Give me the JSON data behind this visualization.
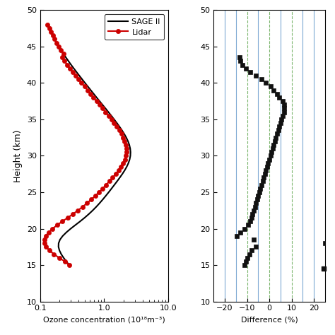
{
  "sage_heights": [
    48,
    47.5,
    47,
    46.5,
    46,
    45.5,
    45,
    44.5,
    44,
    43.5,
    43,
    42.5,
    42,
    41.5,
    41,
    40.5,
    40,
    39.5,
    39,
    38.5,
    38,
    37.5,
    37,
    36.5,
    36,
    35.5,
    35,
    34.5,
    34,
    33.5,
    33,
    32.5,
    32,
    31.5,
    31,
    30.5,
    30,
    29.5,
    29,
    28.5,
    28,
    27.5,
    27,
    26.5,
    26,
    25.5,
    25,
    24.5,
    24,
    23.5,
    23,
    22.5,
    22,
    21.5,
    21,
    20.5,
    20,
    19.5,
    19,
    18.5,
    18,
    17.5,
    17,
    16.5,
    16,
    15.5,
    15
  ],
  "sage_conc": [
    0.13,
    0.138,
    0.147,
    0.157,
    0.168,
    0.181,
    0.196,
    0.212,
    0.231,
    0.252,
    0.276,
    0.303,
    0.334,
    0.369,
    0.408,
    0.452,
    0.501,
    0.556,
    0.617,
    0.685,
    0.761,
    0.846,
    0.941,
    1.047,
    1.163,
    1.29,
    1.428,
    1.576,
    1.732,
    1.894,
    2.057,
    2.213,
    2.354,
    2.469,
    2.547,
    2.58,
    2.564,
    2.499,
    2.392,
    2.251,
    2.09,
    1.92,
    1.751,
    1.59,
    1.44,
    1.302,
    1.176,
    1.059,
    0.95,
    0.848,
    0.752,
    0.661,
    0.575,
    0.495,
    0.421,
    0.355,
    0.3,
    0.257,
    0.225,
    0.204,
    0.194,
    0.193,
    0.2,
    0.213,
    0.232,
    0.256,
    0.284
  ],
  "lidar_heights": [
    48,
    47.5,
    47,
    46.5,
    46,
    45.5,
    45,
    44.5,
    44,
    43.5,
    43,
    42.5,
    42,
    41.5,
    41,
    40.5,
    40,
    39.5,
    39,
    38.5,
    38,
    37.5,
    37,
    36.5,
    36,
    35.5,
    35,
    34.5,
    34,
    33.5,
    33,
    32.5,
    32,
    31.5,
    31,
    30.5,
    30,
    29.5,
    29,
    28.5,
    28,
    27.5,
    27,
    26.5,
    26,
    25.5,
    25,
    24.5,
    24,
    23.5,
    23,
    22.5,
    22,
    21.5,
    21,
    20.5,
    20,
    19.5,
    19,
    18.5,
    18,
    17.5,
    17,
    16.5,
    16,
    15.5,
    15
  ],
  "lidar_conc": [
    0.13,
    0.138,
    0.147,
    0.157,
    0.168,
    0.181,
    0.196,
    0.212,
    0.231,
    0.218,
    0.24,
    0.264,
    0.291,
    0.323,
    0.358,
    0.399,
    0.443,
    0.493,
    0.548,
    0.61,
    0.68,
    0.758,
    0.845,
    0.944,
    1.052,
    1.17,
    1.295,
    1.43,
    1.569,
    1.712,
    1.851,
    1.98,
    2.092,
    2.175,
    2.221,
    2.223,
    2.18,
    2.095,
    1.977,
    1.832,
    1.674,
    1.512,
    1.353,
    1.205,
    1.067,
    0.942,
    0.828,
    0.724,
    0.628,
    0.54,
    0.46,
    0.388,
    0.324,
    0.269,
    0.222,
    0.185,
    0.156,
    0.135,
    0.122,
    0.116,
    0.116,
    0.124,
    0.14,
    0.164,
    0.197,
    0.242,
    0.284
  ],
  "diff_heights": [
    43.5,
    43,
    42.5,
    42,
    41.5,
    41,
    40.5,
    40,
    39.5,
    39,
    38.5,
    38,
    37.5,
    37,
    36.5,
    36,
    35.5,
    35,
    34.5,
    34,
    33.5,
    33,
    32.5,
    32,
    31.5,
    31,
    30.5,
    30,
    29.5,
    29,
    28.5,
    28,
    27.5,
    27,
    26.5,
    26,
    25.5,
    25,
    24.5,
    24,
    23.5,
    23,
    22.5,
    22,
    21.5,
    21,
    20.5,
    20,
    19.5,
    19,
    18.5,
    18,
    17.5,
    17,
    16.5,
    16,
    15.5,
    15
  ],
  "diff_values": [
    -13.5,
    -13.0,
    -12.0,
    -10.5,
    -8.5,
    -6.0,
    -3.5,
    -1.5,
    0.5,
    2.0,
    3.5,
    4.5,
    6.0,
    6.5,
    6.5,
    6.5,
    6.0,
    5.5,
    5.0,
    4.5,
    4.0,
    3.5,
    3.0,
    2.5,
    2.0,
    1.5,
    1.0,
    0.5,
    0.0,
    -0.5,
    -1.0,
    -1.5,
    -2.0,
    -2.5,
    -3.0,
    -3.5,
    -4.0,
    -4.5,
    -5.0,
    -5.5,
    -6.0,
    -6.5,
    -7.0,
    -7.5,
    -8.0,
    -8.5,
    -9.5,
    -11.0,
    -13.0,
    -14.5,
    -7.0,
    25.0,
    -6.0,
    -8.0,
    -9.0,
    -10.0,
    -10.5,
    -11.0
  ],
  "diff_out_heights": [
    14.5
  ],
  "diff_out_side": [
    "right"
  ],
  "ylim": [
    10,
    50
  ],
  "yticks": [
    10,
    15,
    20,
    25,
    30,
    35,
    40,
    45,
    50
  ],
  "xlim_conc": [
    0.1,
    10
  ],
  "xlim_diff": [
    -25,
    25
  ],
  "xticks_diff": [
    -20,
    -10,
    0,
    10,
    20
  ],
  "ylabel": "Height (km)",
  "xlabel_conc": "Ozone concentration (10¹⁸m⁻³)",
  "xlabel_diff": "Difference (%)",
  "sage_color": "#000000",
  "lidar_color": "#cc0000",
  "diff_marker_color": "#111111",
  "vlines_blue": [
    -20,
    -15,
    -5,
    5,
    15,
    20
  ],
  "vlines_green": [
    -10,
    0,
    10
  ],
  "legend_sage": "SAGE II",
  "legend_lidar": "Lidar",
  "blue_line_color": "#6699cc",
  "green_line_color": "#66aa55"
}
